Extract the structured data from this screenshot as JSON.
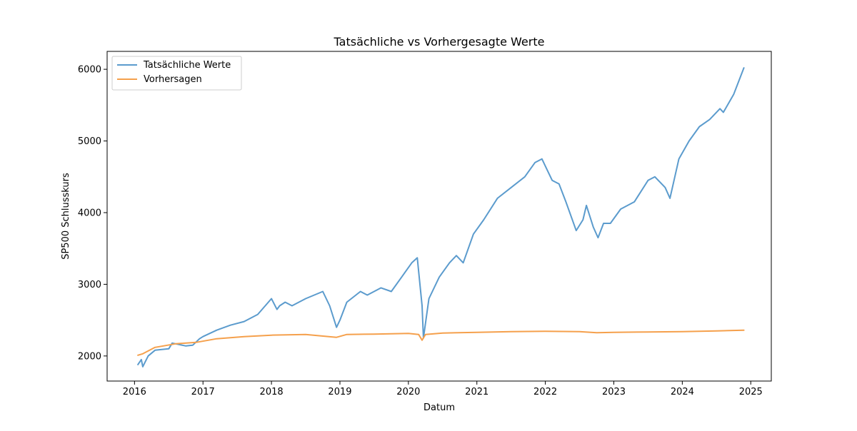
{
  "chart_data": {
    "type": "line",
    "title": "Tatsächliche vs Vorhergesagte Werte",
    "xlabel": "Datum",
    "ylabel": "SP500 Schlusskurs",
    "xlim": [
      2015.6,
      2025.3
    ],
    "ylim": [
      1650,
      6250
    ],
    "xticks": [
      "2016",
      "2017",
      "2018",
      "2019",
      "2020",
      "2021",
      "2022",
      "2023",
      "2024",
      "2025"
    ],
    "yticks": [
      "2000",
      "3000",
      "4000",
      "5000",
      "6000"
    ],
    "grid": false,
    "legend_position": "top-left",
    "series": [
      {
        "name": "Tatsächliche Werte",
        "color": "#5b9bcd",
        "x": [
          2016.05,
          2016.1,
          2016.12,
          2016.2,
          2016.3,
          2016.4,
          2016.5,
          2016.55,
          2016.6,
          2016.75,
          2016.85,
          2016.95,
          2017.0,
          2017.2,
          2017.4,
          2017.6,
          2017.8,
          2018.0,
          2018.08,
          2018.12,
          2018.2,
          2018.3,
          2018.5,
          2018.75,
          2018.85,
          2018.95,
          2019.0,
          2019.1,
          2019.3,
          2019.4,
          2019.6,
          2019.75,
          2019.9,
          2020.05,
          2020.13,
          2020.2,
          2020.22,
          2020.3,
          2020.45,
          2020.6,
          2020.7,
          2020.8,
          2020.95,
          2021.1,
          2021.3,
          2021.5,
          2021.7,
          2021.85,
          2021.95,
          2022.1,
          2022.2,
          2022.3,
          2022.45,
          2022.55,
          2022.6,
          2022.7,
          2022.77,
          2022.85,
          2022.95,
          2023.1,
          2023.3,
          2023.5,
          2023.6,
          2023.75,
          2023.82,
          2023.95,
          2024.1,
          2024.25,
          2024.4,
          2024.55,
          2024.6,
          2024.75,
          2024.9
        ],
        "values": [
          1880,
          1950,
          1850,
          2000,
          2080,
          2090,
          2100,
          2180,
          2170,
          2140,
          2150,
          2240,
          2270,
          2360,
          2430,
          2480,
          2580,
          2800,
          2650,
          2700,
          2750,
          2700,
          2800,
          2900,
          2700,
          2400,
          2500,
          2750,
          2900,
          2850,
          2950,
          2900,
          3100,
          3300,
          3370,
          2700,
          2250,
          2800,
          3100,
          3300,
          3400,
          3300,
          3700,
          3900,
          4200,
          4350,
          4500,
          4700,
          4750,
          4450,
          4400,
          4150,
          3750,
          3900,
          4100,
          3800,
          3650,
          3850,
          3850,
          4050,
          4150,
          4450,
          4500,
          4350,
          4200,
          4750,
          5000,
          5200,
          5300,
          5450,
          5400,
          5650,
          6020
        ]
      },
      {
        "name": "Vorhersagen",
        "color": "#f5a04c",
        "x": [
          2016.05,
          2016.12,
          2016.3,
          2016.6,
          2016.9,
          2017.2,
          2017.6,
          2018.0,
          2018.5,
          2018.95,
          2019.1,
          2019.5,
          2020.0,
          2020.15,
          2020.2,
          2020.25,
          2020.5,
          2021.0,
          2021.5,
          2022.0,
          2022.5,
          2022.75,
          2023.0,
          2023.5,
          2024.0,
          2024.5,
          2024.9
        ],
        "values": [
          2010,
          2030,
          2120,
          2170,
          2190,
          2240,
          2270,
          2290,
          2300,
          2260,
          2300,
          2305,
          2315,
          2300,
          2220,
          2300,
          2320,
          2330,
          2340,
          2345,
          2340,
          2325,
          2330,
          2335,
          2340,
          2350,
          2360
        ]
      }
    ]
  }
}
